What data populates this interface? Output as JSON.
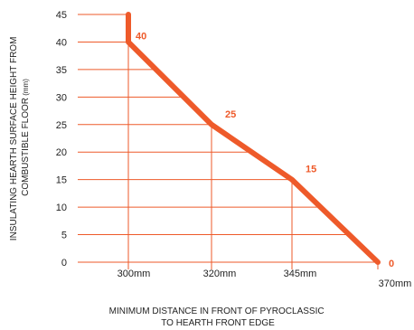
{
  "chart_data": {
    "type": "line",
    "ylabel": {
      "line1": "INSULATING HEARTH SURFACE HEIGHT FROM",
      "line2_main": "COMBUSTIBLE FLOOR",
      "line2_unit": " (mm)"
    },
    "xlabel": {
      "line1": "MINIMUM DISTANCE IN FRONT OF PYROCLASSIC",
      "line2": "TO HEARTH FRONT EDGE"
    },
    "ylim": [
      0,
      45
    ],
    "yticks": [
      0,
      5,
      10,
      15,
      20,
      25,
      30,
      35,
      40,
      45
    ],
    "x_categories": [
      "300mm",
      "320mm",
      "345mm",
      "370mm"
    ],
    "x_values": [
      300,
      320,
      345,
      370
    ],
    "series": [
      {
        "values": [
          {
            "x": 300,
            "y": 45
          },
          {
            "x": 300,
            "y": 40
          },
          {
            "x": 320,
            "y": 25
          },
          {
            "x": 345,
            "y": 15
          },
          {
            "x": 370,
            "y": 0
          }
        ]
      }
    ],
    "point_labels": [
      {
        "x": 300,
        "y": 40,
        "text": "40"
      },
      {
        "x": 320,
        "y": 25,
        "text": "25"
      },
      {
        "x": 345,
        "y": 15,
        "text": "15"
      },
      {
        "x": 370,
        "y": 0,
        "text": "0"
      }
    ],
    "grid": true,
    "colors": {
      "line": "#ee5a2a",
      "grid": "#ee5a2a",
      "text": "#222222"
    }
  }
}
